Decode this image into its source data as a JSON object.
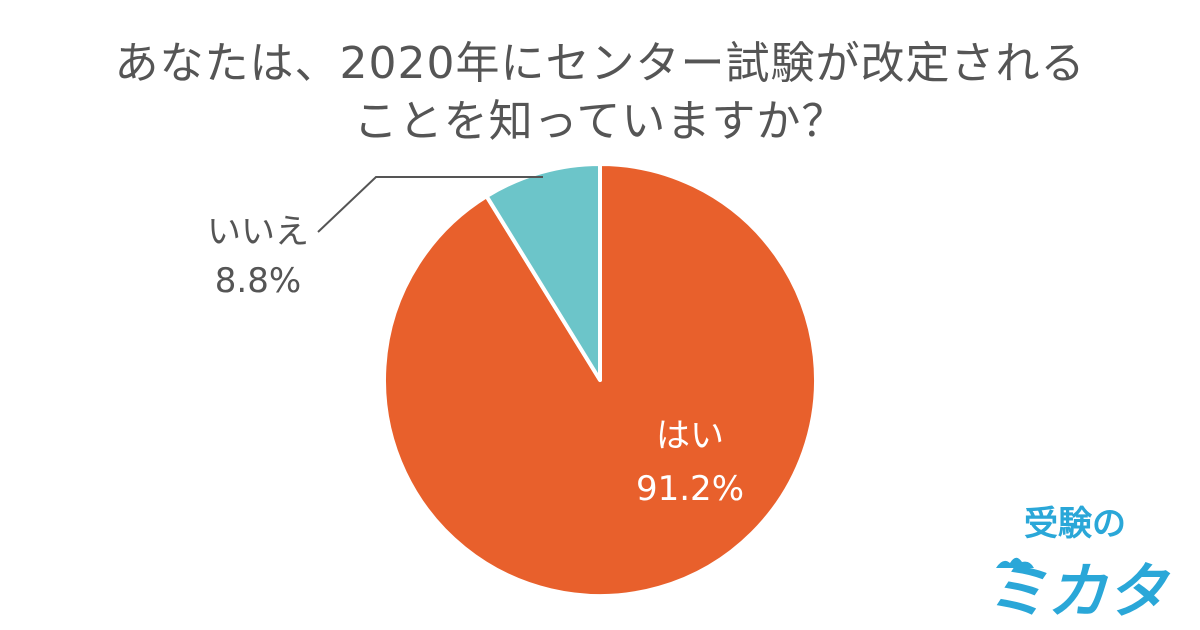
{
  "title_lines": [
    "あなたは、2020年にセンター試験が改定される",
    "ことを知っていますか？"
  ],
  "chart_data": {
    "type": "pie",
    "title": "あなたは、2020年にセンター試験が改定されることを知っていますか？",
    "start_angle_deg": 0,
    "direction": "clockwise",
    "slices": [
      {
        "label": "はい",
        "value": 91.2,
        "value_label": "91.2%",
        "color": "#e8602c",
        "label_color": "#ffffff"
      },
      {
        "label": "いいえ",
        "value": 8.8,
        "value_label": "8.8%",
        "color": "#6cc5c9",
        "label_color": "#555555"
      }
    ]
  },
  "logo": {
    "top_text": "受験の",
    "bottom_text": "ミカタ",
    "color": "#2aa7d8"
  }
}
